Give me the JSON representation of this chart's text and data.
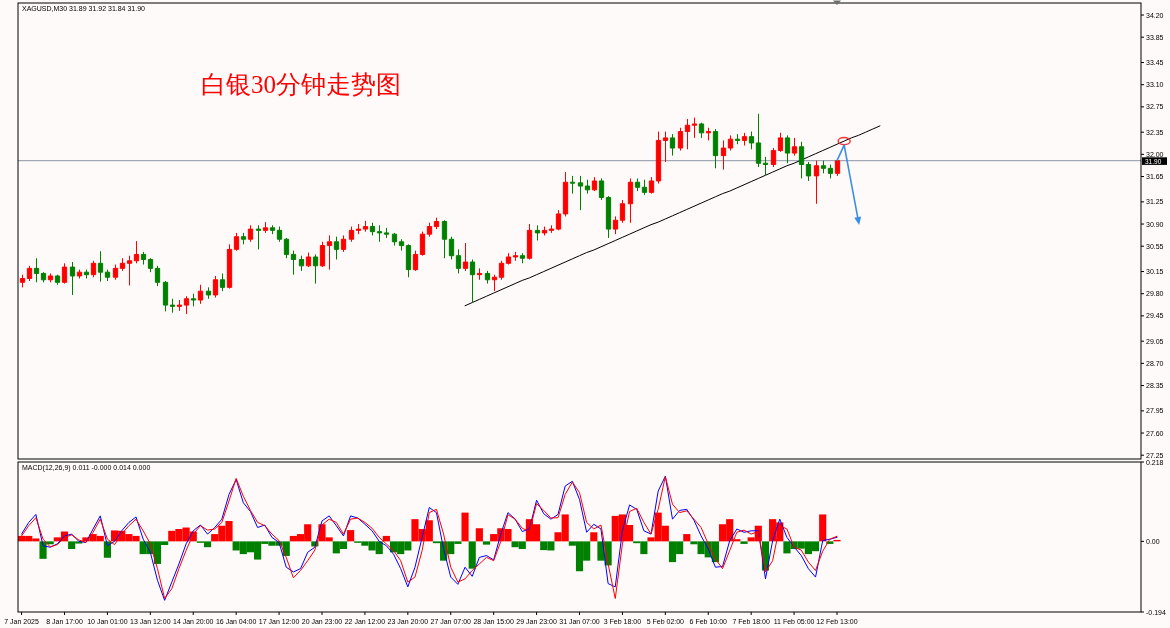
{
  "chart_data": [
    {
      "type": "candlestick",
      "title": "XAGUSD,M30 31.89 31.92 31.84 31.90",
      "annotations": [
        "白银30分钟走势图"
      ],
      "categories": [
        null,
        null,
        null,
        null,
        null,
        null,
        null,
        null,
        null,
        null,
        null,
        null,
        null,
        null,
        null,
        null,
        null,
        null,
        null,
        null,
        null,
        null,
        null,
        null,
        null,
        null,
        null,
        null,
        null,
        null,
        null,
        null,
        null,
        null,
        null,
        null,
        null,
        null,
        null,
        null,
        null,
        null,
        null,
        null,
        null,
        null,
        null,
        null,
        null,
        null,
        null,
        null,
        null,
        null,
        null,
        null,
        null,
        null,
        null,
        null,
        null,
        null,
        null,
        null,
        null,
        null,
        null,
        null,
        null,
        null,
        null,
        null,
        null,
        null,
        null,
        null,
        null,
        null,
        null,
        null,
        null,
        null,
        null,
        null,
        null,
        null,
        null,
        null,
        null,
        null,
        null,
        null,
        null,
        null,
        null,
        null,
        null,
        null,
        null,
        null,
        null,
        null,
        null,
        null,
        null,
        null,
        null,
        null,
        null,
        null,
        null,
        null,
        null,
        null,
        null,
        null,
        null,
        null,
        null,
        null,
        null,
        null,
        null,
        null,
        null,
        null,
        null,
        null,
        null,
        null,
        null,
        null,
        null,
        null,
        null,
        null,
        null,
        null,
        null,
        null,
        null,
        null,
        null,
        null,
        null,
        null,
        null,
        null,
        null,
        null,
        null,
        null,
        null,
        null,
        null,
        null,
        null
      ],
      "ohlc": [
        [
          29.98,
          30.1,
          29.9,
          30.04
        ],
        [
          30.04,
          30.24,
          30.0,
          30.2
        ],
        [
          30.2,
          30.36,
          29.98,
          30.12
        ],
        [
          30.12,
          30.14,
          29.98,
          30.02
        ],
        [
          30.02,
          30.12,
          29.98,
          30.08
        ],
        [
          30.08,
          30.1,
          29.94,
          29.98
        ],
        [
          29.98,
          30.28,
          29.96,
          30.22
        ],
        [
          30.22,
          30.3,
          29.78,
          30.08
        ],
        [
          30.08,
          30.18,
          30.04,
          30.14
        ],
        [
          30.14,
          30.18,
          30.04,
          30.1
        ],
        [
          30.1,
          30.32,
          30.06,
          30.28
        ],
        [
          30.28,
          30.47,
          29.99,
          30.14
        ],
        [
          30.14,
          30.18,
          30.0,
          30.06
        ],
        [
          30.06,
          30.26,
          30.02,
          30.2
        ],
        [
          30.2,
          30.36,
          30.16,
          30.28
        ],
        [
          30.28,
          30.4,
          29.93,
          30.32
        ],
        [
          30.32,
          30.63,
          30.28,
          30.42
        ],
        [
          30.42,
          30.46,
          30.26,
          30.34
        ],
        [
          30.34,
          30.36,
          30.14,
          30.2
        ],
        [
          30.2,
          30.24,
          29.92,
          29.98
        ],
        [
          29.98,
          30.0,
          29.52,
          29.62
        ],
        [
          29.62,
          29.72,
          29.5,
          29.6
        ],
        [
          29.6,
          29.7,
          29.53,
          29.62
        ],
        [
          29.62,
          29.76,
          29.48,
          29.72
        ],
        [
          29.72,
          29.8,
          29.6,
          29.7
        ],
        [
          29.7,
          29.94,
          29.64,
          29.84
        ],
        [
          29.84,
          29.9,
          29.72,
          29.78
        ],
        [
          29.78,
          30.08,
          29.74,
          30.02
        ],
        [
          30.02,
          30.12,
          29.84,
          29.9
        ],
        [
          29.9,
          30.58,
          29.88,
          30.5
        ],
        [
          30.5,
          30.76,
          30.48,
          30.7
        ],
        [
          30.7,
          30.76,
          30.58,
          30.66
        ],
        [
          30.66,
          30.88,
          30.62,
          30.82
        ],
        [
          30.82,
          30.88,
          30.5,
          30.8
        ],
        [
          30.8,
          30.93,
          30.76,
          30.84
        ],
        [
          30.84,
          30.88,
          30.74,
          30.8
        ],
        [
          30.8,
          30.86,
          30.62,
          30.66
        ],
        [
          30.66,
          30.68,
          30.36,
          30.42
        ],
        [
          30.42,
          30.48,
          30.1,
          30.34
        ],
        [
          30.34,
          30.4,
          30.16,
          30.24
        ],
        [
          30.24,
          30.45,
          30.22,
          30.38
        ],
        [
          30.38,
          30.42,
          29.96,
          30.24
        ],
        [
          30.24,
          30.62,
          30.22,
          30.56
        ],
        [
          30.56,
          30.72,
          30.18,
          30.62
        ],
        [
          30.62,
          30.7,
          30.34,
          30.5
        ],
        [
          30.5,
          30.72,
          30.46,
          30.66
        ],
        [
          30.66,
          30.86,
          30.62,
          30.8
        ],
        [
          30.8,
          30.9,
          30.74,
          30.82
        ],
        [
          30.82,
          30.95,
          30.78,
          30.86
        ],
        [
          30.86,
          30.92,
          30.72,
          30.78
        ],
        [
          30.78,
          30.88,
          30.62,
          30.76
        ],
        [
          30.76,
          30.84,
          30.68,
          30.74
        ],
        [
          30.74,
          30.76,
          30.56,
          30.62
        ],
        [
          30.62,
          30.66,
          30.48,
          30.56
        ],
        [
          30.56,
          30.58,
          30.06,
          30.18
        ],
        [
          30.18,
          30.48,
          30.16,
          30.42
        ],
        [
          30.42,
          30.78,
          30.4,
          30.74
        ],
        [
          30.74,
          30.92,
          30.7,
          30.86
        ],
        [
          30.86,
          31.0,
          30.82,
          30.94
        ],
        [
          30.94,
          30.96,
          30.36,
          30.66
        ],
        [
          30.66,
          30.7,
          30.34,
          30.4
        ],
        [
          30.4,
          30.5,
          30.12,
          30.2
        ],
        [
          30.2,
          30.6,
          30.16,
          30.3
        ],
        [
          30.3,
          30.34,
          29.66,
          30.1
        ],
        [
          30.1,
          30.2,
          30.02,
          30.12
        ],
        [
          30.12,
          30.16,
          29.96,
          30.02
        ],
        [
          30.02,
          30.1,
          29.84,
          30.06
        ],
        [
          30.06,
          30.32,
          30.02,
          30.28
        ],
        [
          30.28,
          30.44,
          30.26,
          30.38
        ],
        [
          30.38,
          30.46,
          30.32,
          30.4
        ],
        [
          30.4,
          30.44,
          30.28,
          30.36
        ],
        [
          30.36,
          30.9,
          30.34,
          30.8
        ],
        [
          30.8,
          30.88,
          30.64,
          30.76
        ],
        [
          30.76,
          30.86,
          30.72,
          30.8
        ],
        [
          30.8,
          30.88,
          30.76,
          30.82
        ],
        [
          30.82,
          31.12,
          30.8,
          31.06
        ],
        [
          31.06,
          31.72,
          31.02,
          31.56
        ],
        [
          31.56,
          31.66,
          31.38,
          31.55
        ],
        [
          31.55,
          31.66,
          31.12,
          31.5
        ],
        [
          31.5,
          31.6,
          31.38,
          31.44
        ],
        [
          31.44,
          31.64,
          31.42,
          31.58
        ],
        [
          31.58,
          31.62,
          31.28,
          31.32
        ],
        [
          31.32,
          31.34,
          30.68,
          30.82
        ],
        [
          30.82,
          31.02,
          30.74,
          30.96
        ],
        [
          30.96,
          31.28,
          30.92,
          31.22
        ],
        [
          31.22,
          31.62,
          30.92,
          31.56
        ],
        [
          31.56,
          31.62,
          31.42,
          31.48
        ],
        [
          31.48,
          31.6,
          31.36,
          31.4
        ],
        [
          31.4,
          31.64,
          31.38,
          31.58
        ],
        [
          31.58,
          32.36,
          31.54,
          32.22
        ],
        [
          32.22,
          32.36,
          31.88,
          32.26
        ],
        [
          32.26,
          32.32,
          31.98,
          32.1
        ],
        [
          32.1,
          32.42,
          32.06,
          32.36
        ],
        [
          32.36,
          32.56,
          32.08,
          32.46
        ],
        [
          32.46,
          32.58,
          32.26,
          32.48
        ],
        [
          32.48,
          32.5,
          32.26,
          32.34
        ],
        [
          32.34,
          32.42,
          32.22,
          32.36
        ],
        [
          32.36,
          32.4,
          31.78,
          31.98
        ],
        [
          31.98,
          32.22,
          31.76,
          32.1
        ],
        [
          32.1,
          32.3,
          32.06,
          32.24
        ],
        [
          32.24,
          32.32,
          32.16,
          32.22
        ],
        [
          32.22,
          32.34,
          32.14,
          32.28
        ],
        [
          32.28,
          32.36,
          32.08,
          32.18
        ],
        [
          32.18,
          32.64,
          31.8,
          31.86
        ],
        [
          31.86,
          31.96,
          31.67,
          31.84
        ],
        [
          31.84,
          32.1,
          31.8,
          32.06
        ],
        [
          32.06,
          32.34,
          32.04,
          32.26
        ],
        [
          32.26,
          32.3,
          31.86,
          32.02
        ],
        [
          32.02,
          32.26,
          31.98,
          32.12
        ],
        [
          32.12,
          32.2,
          31.62,
          31.84
        ],
        [
          31.84,
          31.88,
          31.58,
          31.66
        ],
        [
          31.66,
          31.9,
          31.22,
          31.82
        ],
        [
          31.82,
          31.9,
          31.7,
          31.78
        ],
        [
          31.78,
          31.84,
          31.62,
          31.7
        ],
        [
          31.7,
          31.92,
          31.66,
          31.9
        ],
        null,
        null,
        null,
        null,
        null,
        null,
        null,
        null,
        null,
        null,
        null,
        null,
        null,
        null,
        null,
        null,
        null,
        null,
        null,
        null,
        null,
        null,
        null,
        null,
        null,
        null,
        null,
        null,
        null,
        null,
        null,
        null,
        null,
        null,
        null,
        null,
        null,
        null,
        null,
        null,
        null,
        null
      ],
      "colors": [
        "#ff0000",
        "#ff0000",
        "#008000",
        "#008000",
        "#ff0000",
        "#008000",
        "#ff0000",
        "#008000",
        "#ff0000",
        "#008000",
        "#ff0000",
        "#008000",
        "#008000",
        "#ff0000",
        "#ff0000",
        "#ff0000",
        "#ff0000",
        "#008000",
        "#008000",
        "#008000",
        "#008000",
        "#008000",
        "#ff0000",
        "#ff0000",
        "#008000",
        "#ff0000",
        "#008000",
        "#ff0000",
        "#008000",
        "#ff0000",
        "#ff0000",
        "#008000",
        "#ff0000",
        "#008000",
        "#ff0000",
        "#008000",
        "#008000",
        "#008000",
        "#008000",
        "#008000",
        "#ff0000",
        "#008000",
        "#ff0000",
        "#ff0000",
        "#008000",
        "#ff0000",
        "#ff0000",
        "#ff0000",
        "#ff0000",
        "#008000",
        "#008000",
        "#008000",
        "#008000",
        "#008000",
        "#008000",
        "#ff0000",
        "#ff0000",
        "#ff0000",
        "#ff0000",
        "#008000",
        "#008000",
        "#008000",
        "#ff0000",
        "#008000",
        "#ff0000",
        "#008000",
        "#ff0000",
        "#ff0000",
        "#ff0000",
        "#ff0000",
        "#008000",
        "#ff0000",
        "#008000",
        "#ff0000",
        "#ff0000",
        "#ff0000",
        "#ff0000",
        "#008000",
        "#008000",
        "#008000",
        "#ff0000",
        "#008000",
        "#008000",
        "#ff0000",
        "#ff0000",
        "#ff0000",
        "#008000",
        "#008000",
        "#ff0000",
        "#ff0000",
        "#ff0000",
        "#008000",
        "#ff0000",
        "#ff0000",
        "#ff0000",
        "#008000",
        "#ff0000",
        "#008000",
        "#ff0000",
        "#ff0000",
        "#008000",
        "#ff0000",
        "#008000",
        "#008000",
        "#008000",
        "#ff0000",
        "#ff0000",
        "#008000",
        "#ff0000",
        "#008000",
        "#008000",
        "#ff0000",
        "#008000",
        "#008000",
        "#ff0000",
        null,
        null,
        null,
        null,
        null,
        null,
        null,
        null,
        null,
        null,
        null,
        null,
        null,
        null,
        null,
        null,
        null,
        null,
        null,
        null,
        null,
        null,
        null,
        null,
        null,
        null,
        null,
        null,
        null,
        null,
        null,
        null,
        null,
        null,
        null,
        null,
        null,
        null,
        null,
        null,
        null,
        null
      ],
      "ylim": [
        27.19,
        34.39
      ],
      "yticks": [
        {
          "value": 34.2,
          "label": "34.20"
        },
        33.85,
        33.45,
        {
          "value": 33.1,
          "label": "33.10"
        },
        32.75,
        32.35,
        {
          "value": 32,
          "label": "32.00"
        },
        31.65,
        31.25,
        {
          "value": 30.9,
          "label": "30.90"
        },
        30.55,
        30.15,
        {
          "value": 29.8,
          "label": "29.80"
        },
        29.45,
        29.05,
        {
          "value": 28.7,
          "label": "28.70"
        },
        28.35,
        27.95,
        {
          "value": 27.6,
          "label": "27.60"
        },
        27.25
      ],
      "ref_lines": [
        {
          "axis": "y",
          "value": 31.9,
          "label": "31.90",
          "color": "#8a96a3"
        }
      ],
      "series": [
        {
          "type": "line",
          "color": "#000000",
          "values": [
            null,
            null,
            null,
            null,
            null,
            null,
            null,
            null,
            null,
            null,
            null,
            null,
            null,
            null,
            null,
            null,
            null,
            null,
            null,
            null,
            null,
            null,
            null,
            null,
            null,
            null,
            null,
            null,
            null,
            null,
            null,
            null,
            null,
            null,
            null,
            null,
            null,
            null,
            null,
            null,
            null,
            null,
            null,
            null,
            null,
            null,
            null,
            null,
            null,
            null,
            null,
            null,
            null,
            null,
            null,
            null,
            null,
            null,
            null,
            null,
            null,
            null,
            29.61,
            29.66,
            29.71,
            29.76,
            29.81,
            29.86,
            29.91,
            29.96,
            30.01,
            30.05,
            30.1,
            30.15,
            30.2,
            30.25,
            30.3,
            30.35,
            30.4,
            30.45,
            30.49,
            30.54,
            30.59,
            30.64,
            30.69,
            30.74,
            30.79,
            30.84,
            30.89,
            30.93,
            30.98,
            31.03,
            31.08,
            31.13,
            31.18,
            31.23,
            31.28,
            31.33,
            31.38,
            31.42,
            31.47,
            31.52,
            31.57,
            31.62,
            31.67,
            31.72,
            31.77,
            31.82,
            31.86,
            31.91,
            31.96,
            32.01,
            32.06,
            32.11,
            32.16,
            32.21,
            32.26,
            32.3,
            32.35,
            32.4,
            32.45,
            null,
            null,
            null,
            null,
            null,
            null,
            null,
            null,
            null,
            null,
            null,
            null,
            null,
            null,
            null,
            null,
            null,
            null,
            null,
            null,
            null,
            null,
            null,
            null,
            null,
            null,
            null,
            null,
            null,
            null,
            null,
            null,
            null,
            null,
            null,
            null
          ]
        }
      ]
    },
    {
      "type": "bar",
      "title": "MACD(12,26,9) 0.011 -0.000 0.014 0.000",
      "categories": [
        "7 Jan 2025",
        null,
        null,
        null,
        null,
        null,
        "8 Jan 17:00",
        null,
        null,
        null,
        null,
        null,
        "10 Jan 01:00",
        null,
        null,
        null,
        null,
        null,
        "13 Jan 12:00",
        null,
        null,
        null,
        null,
        null,
        "14 Jan 20:00",
        null,
        null,
        null,
        null,
        null,
        "16 Jan 04:00",
        null,
        null,
        null,
        null,
        null,
        "17 Jan 12:00",
        null,
        null,
        null,
        null,
        null,
        "20 Jan 23:00",
        null,
        null,
        null,
        null,
        null,
        "22 Jan 12:00",
        null,
        null,
        null,
        null,
        null,
        "23 Jan 20:00",
        null,
        null,
        null,
        null,
        null,
        "27 Jan 07:00",
        null,
        null,
        null,
        null,
        null,
        "28 Jan 15:00",
        null,
        null,
        null,
        null,
        null,
        "29 Jan 23:00",
        null,
        null,
        null,
        null,
        null,
        "31 Jan 07:00",
        null,
        null,
        null,
        null,
        null,
        "3 Feb 18:00",
        null,
        null,
        null,
        null,
        null,
        "5 Feb 02:00",
        null,
        null,
        null,
        null,
        null,
        "6 Feb 10:00",
        null,
        null,
        null,
        null,
        null,
        "7 Feb 18:00",
        null,
        null,
        null,
        null,
        null,
        "11 Feb 05:00",
        null,
        null,
        null,
        null,
        null,
        "12 Feb 13:00",
        null,
        null,
        null,
        null,
        null,
        null,
        null,
        null,
        null,
        null,
        null,
        null,
        null,
        null,
        null,
        null,
        null,
        null,
        null,
        null,
        null,
        null,
        null,
        null,
        null,
        null,
        null,
        null,
        null,
        null,
        null,
        null,
        null,
        null,
        null,
        null,
        null,
        null,
        null,
        null,
        null,
        null
      ],
      "series": [
        {
          "values": [
            0.015,
            0.015,
            0.008,
            -0.048,
            -0.008,
            0.011,
            0.027,
            -0.021,
            -0.006,
            0.011,
            0.02,
            0.015,
            -0.045,
            0.03,
            0.029,
            0.02,
            0.015,
            -0.035,
            -0.035,
            -0.062,
            -0.01,
            0.029,
            0.034,
            0.038,
            0.027,
            -0.004,
            -0.016,
            0.02,
            0.043,
            0.056,
            -0.025,
            -0.035,
            -0.03,
            -0.05,
            -0.007,
            -0.012,
            -0.012,
            -0.04,
            0.015,
            0.02,
            0.047,
            -0.014,
            0.047,
            0.011,
            -0.033,
            -0.021,
            0.031,
            -0.004,
            -0.012,
            -0.025,
            -0.035,
            0.015,
            -0.03,
            -0.035,
            -0.025,
            0.061,
            0.034,
            0.058,
            -0.005,
            -0.053,
            -0.035,
            -0.007,
            0.079,
            -0.075,
            0.036,
            -0.009,
            0.02,
            0.036,
            0.034,
            -0.016,
            -0.021,
            0.061,
            0.047,
            -0.024,
            -0.025,
            0.025,
            0.074,
            -0.012,
            -0.082,
            -0.053,
            0.025,
            -0.053,
            -0.066,
            0.07,
            0.074,
            0.045,
            -0.005,
            -0.035,
            0.011,
            0.079,
            0.043,
            -0.057,
            -0.035,
            0.02,
            -0.008,
            -0.035,
            -0.044,
            -0.057,
            0.047,
            0.061,
            0.006,
            -0.007,
            0.011,
            0.043,
            -0.08,
            0.061,
            0.052,
            -0.033,
            -0.021,
            -0.02,
            -0.035,
            -0.027,
            0.074,
            -0.007,
            0.004,
            null,
            null,
            null,
            null,
            null,
            null,
            null,
            null,
            null,
            null,
            null,
            null,
            null,
            null,
            null,
            null,
            null,
            null,
            null,
            null,
            null,
            null,
            null,
            null,
            null,
            null,
            null,
            null,
            null,
            null,
            null,
            null,
            null,
            null,
            null,
            null,
            null,
            null,
            null,
            null,
            null,
            null
          ],
          "colors": [
            "#ff0000",
            "#ff0000",
            "#ff0000",
            "#008000",
            "#008000",
            "#ff0000",
            "#ff0000",
            "#008000",
            "#008000",
            "#ff0000",
            "#ff0000",
            "#ff0000",
            "#008000",
            "#ff0000",
            "#ff0000",
            "#ff0000",
            "#ff0000",
            "#008000",
            "#008000",
            "#008000",
            "#008000",
            "#ff0000",
            "#ff0000",
            "#ff0000",
            "#ff0000",
            "#008000",
            "#008000",
            "#ff0000",
            "#ff0000",
            "#ff0000",
            "#008000",
            "#008000",
            "#008000",
            "#008000",
            "#008000",
            "#008000",
            "#008000",
            "#008000",
            "#ff0000",
            "#ff0000",
            "#ff0000",
            "#008000",
            "#ff0000",
            "#ff0000",
            "#008000",
            "#008000",
            "#ff0000",
            "#008000",
            "#008000",
            "#008000",
            "#008000",
            "#ff0000",
            "#008000",
            "#008000",
            "#008000",
            "#ff0000",
            "#ff0000",
            "#ff0000",
            "#008000",
            "#008000",
            "#008000",
            "#008000",
            "#ff0000",
            "#008000",
            "#ff0000",
            "#008000",
            "#ff0000",
            "#ff0000",
            "#ff0000",
            "#008000",
            "#008000",
            "#ff0000",
            "#ff0000",
            "#008000",
            "#008000",
            "#ff0000",
            "#ff0000",
            "#008000",
            "#008000",
            "#008000",
            "#ff0000",
            "#008000",
            "#008000",
            "#ff0000",
            "#ff0000",
            "#ff0000",
            "#008000",
            "#008000",
            "#ff0000",
            "#ff0000",
            "#ff0000",
            "#008000",
            "#008000",
            "#ff0000",
            "#008000",
            "#008000",
            "#008000",
            "#008000",
            "#ff0000",
            "#ff0000",
            "#ff0000",
            "#008000",
            "#ff0000",
            "#ff0000",
            "#008000",
            "#ff0000",
            "#ff0000",
            "#008000",
            "#008000",
            "#008000",
            "#008000",
            "#008000",
            "#ff0000",
            "#008000",
            "#ff0000",
            null,
            null,
            null,
            null,
            null,
            null,
            null,
            null,
            null,
            null,
            null,
            null,
            null,
            null,
            null,
            null,
            null,
            null,
            null,
            null,
            null,
            null,
            null,
            null,
            null,
            null,
            null,
            null,
            null,
            null,
            null,
            null,
            null,
            null,
            null,
            null,
            null,
            null,
            null,
            null,
            null,
            null
          ]
        },
        {
          "type": "line",
          "color": "#0000ff",
          "values": [
            0.02,
            0.052,
            0.074,
            -0.012,
            -0.016,
            -0.007,
            0.015,
            0.02,
            0.0,
            -0.003,
            0.034,
            0.07,
            -0.012,
            0.0,
            0.029,
            0.052,
            0.067,
            0.006,
            -0.03,
            -0.107,
            -0.162,
            -0.112,
            -0.062,
            -0.007,
            0.029,
            0.045,
            0.02,
            0.038,
            0.061,
            0.129,
            0.17,
            0.106,
            0.082,
            0.038,
            0.045,
            0.011,
            -0.003,
            -0.071,
            -0.084,
            -0.075,
            -0.03,
            -0.016,
            0.056,
            0.07,
            0.043,
            0.015,
            0.07,
            0.064,
            0.047,
            0.029,
            0.0,
            -0.012,
            -0.035,
            -0.075,
            -0.125,
            -0.071,
            0.011,
            0.093,
            0.079,
            -0.021,
            -0.098,
            -0.118,
            -0.071,
            -0.096,
            -0.044,
            -0.039,
            -0.051,
            0.02,
            0.079,
            0.061,
            0.027,
            0.034,
            0.113,
            0.076,
            0.061,
            0.074,
            0.152,
            0.165,
            0.115,
            0.025,
            0.047,
            0.034,
            -0.116,
            -0.125,
            0.029,
            0.1,
            0.088,
            0.029,
            0.02,
            0.138,
            0.179,
            0.061,
            0.085,
            0.088,
            0.058,
            0.015,
            -0.021,
            -0.071,
            -0.069,
            0.002,
            0.034,
            0.025,
            0.029,
            0.029,
            -0.103,
            0.002,
            0.061,
            0.011,
            -0.015,
            -0.039,
            -0.075,
            -0.098,
            0.002,
            0.006,
            0.011,
            null,
            null,
            null,
            null,
            null,
            null,
            null,
            null,
            null,
            null,
            null,
            null,
            null,
            null,
            null,
            null,
            null,
            null,
            null,
            null,
            null,
            null,
            null,
            null,
            null,
            null,
            null,
            null,
            null,
            null,
            null,
            null,
            null,
            null,
            null,
            null,
            null,
            null,
            null,
            null,
            null,
            null
          ]
        },
        {
          "type": "line",
          "color": "#ff0000",
          "values": [
            0.015,
            0.043,
            0.065,
            0.006,
            -0.015,
            -0.009,
            0.011,
            0.018,
            0.004,
            -0.003,
            0.025,
            0.061,
            0.006,
            -0.009,
            0.02,
            0.043,
            0.061,
            0.029,
            -0.007,
            -0.075,
            -0.157,
            -0.13,
            -0.075,
            -0.025,
            0.02,
            0.043,
            0.031,
            0.034,
            0.052,
            0.111,
            0.173,
            0.124,
            0.085,
            0.052,
            0.043,
            0.02,
            0.002,
            -0.044,
            -0.1,
            -0.08,
            -0.053,
            -0.024,
            0.045,
            0.061,
            0.052,
            0.02,
            0.061,
            0.064,
            0.052,
            0.036,
            0.011,
            -0.007,
            -0.025,
            -0.053,
            -0.112,
            -0.098,
            -0.025,
            0.079,
            0.088,
            0.02,
            -0.071,
            -0.112,
            -0.103,
            -0.08,
            -0.062,
            -0.044,
            -0.053,
            0.0,
            0.073,
            0.061,
            0.036,
            0.027,
            0.104,
            0.085,
            0.064,
            0.065,
            0.129,
            0.163,
            0.134,
            0.052,
            0.034,
            0.045,
            -0.062,
            -0.157,
            -0.007,
            0.082,
            0.091,
            0.052,
            0.02,
            0.088,
            0.178,
            0.102,
            0.079,
            0.084,
            0.061,
            0.038,
            -0.007,
            -0.048,
            -0.075,
            -0.025,
            0.025,
            0.031,
            0.02,
            0.027,
            -0.084,
            -0.053,
            0.043,
            0.034,
            -0.016,
            -0.024,
            -0.057,
            -0.08,
            -0.027,
            0.006,
            0.014,
            null,
            null,
            null,
            null,
            null,
            null,
            null,
            null,
            null,
            null,
            null,
            null,
            null,
            null,
            null,
            null,
            null,
            null,
            null,
            null,
            null,
            null,
            null,
            null,
            null,
            null,
            null,
            null,
            null,
            null,
            null,
            null,
            null,
            null,
            null,
            null,
            null,
            null,
            null,
            null,
            null,
            null
          ]
        }
      ],
      "ylim": [
        -0.194,
        0.218
      ],
      "yticks": [
        0.218,
        {
          "value": 0,
          "label": "0.00"
        },
        -0.194
      ]
    }
  ]
}
